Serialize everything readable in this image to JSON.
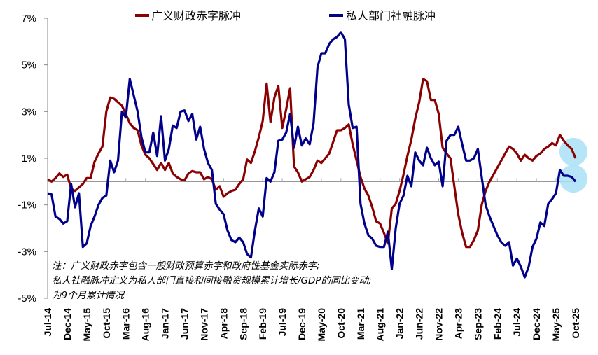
{
  "chart_data": {
    "type": "line",
    "x_start": "Jul-14",
    "frequency": "monthly",
    "x_tick_labels": [
      "Jul-14",
      "Dec-14",
      "May-15",
      "Oct-15",
      "Mar-16",
      "Aug-16",
      "Jan-17",
      "Jun-17",
      "Nov-17",
      "Apr-18",
      "Sep-18",
      "Feb-19",
      "Jul-19",
      "Dec-19",
      "May-20",
      "Oct-20",
      "Mar-21",
      "Aug-21",
      "Jan-22",
      "Jun-22",
      "Nov-22",
      "Apr-23",
      "Sep-23",
      "Feb-24",
      "Jul-24",
      "Dec-24",
      "May-25",
      "Oct-25"
    ],
    "y_tick_labels": [
      "7%",
      "5%",
      "3%",
      "1%",
      "-1%",
      "-3%",
      "-5%"
    ],
    "y_ticks": [
      7,
      5,
      3,
      1,
      -1,
      -3,
      -5
    ],
    "ylim": [
      -5,
      7
    ],
    "grid": false,
    "legend_position": "top",
    "series": [
      {
        "name": "广义财政赤字脉冲",
        "color": "#8b0000",
        "values": [
          0.1,
          0,
          0.15,
          0.35,
          0.2,
          0.3,
          -0.3,
          -0.4,
          -0.25,
          -0.1,
          0.15,
          0.15,
          0.85,
          1.2,
          1.5,
          3.0,
          3.6,
          3.55,
          3.4,
          3.25,
          2.9,
          2.5,
          2.3,
          2.2,
          1.55,
          1.15,
          1.0,
          0.75,
          0.5,
          0.8,
          0.5,
          0.8,
          0.35,
          0.2,
          0.1,
          0.05,
          0.35,
          0.45,
          0.4,
          0.4,
          0.1,
          0.2,
          0.1,
          -0.35,
          -0.2,
          -0.65,
          -0.5,
          -0.4,
          -0.35,
          -0.1,
          0.1,
          0.95,
          0.8,
          1.3,
          1.9,
          2.6,
          4.2,
          2.55,
          3.6,
          4.1,
          2.3,
          3.1,
          4.0,
          0.65,
          0.4,
          0,
          0.1,
          0.2,
          0.5,
          0.9,
          0.8,
          1.0,
          1.2,
          1.7,
          2.2,
          2.2,
          2.3,
          2.45,
          1.6,
          0.9,
          0.2,
          -0.3,
          -0.6,
          -1.1,
          -1.7,
          -1.8,
          -2.2,
          -2.65,
          -1.15,
          -0.95,
          -0.4,
          0.3,
          1.1,
          1.8,
          2.7,
          3.4,
          4.4,
          4.3,
          3.5,
          3.5,
          2.9,
          1.45,
          1.2,
          1.0,
          -0.2,
          -1.4,
          -2.2,
          -2.8,
          -2.8,
          -2.5,
          -2.1,
          -1.0,
          -0.4,
          0,
          0.3,
          0.6,
          0.9,
          1.2,
          1.5,
          1.4,
          1.2,
          0.9,
          1.15,
          1.0,
          0.9,
          1.1,
          1.2,
          1.4,
          1.5,
          1.65,
          1.55,
          2.0,
          1.75,
          1.55,
          1.4,
          1.0
        ]
      },
      {
        "name": "私人部门社融脉冲",
        "color": "#00008b",
        "values": [
          -0.5,
          -0.55,
          -1.5,
          -1.6,
          -1.8,
          -1.7,
          -0.1,
          -1.1,
          -0.5,
          -2.8,
          -2.65,
          -1.9,
          -1.5,
          -1.0,
          -0.7,
          -0.6,
          0.9,
          0.4,
          0.9,
          3.0,
          2.75,
          4.4,
          3.7,
          3.0,
          1.9,
          1.25,
          1.25,
          2.1,
          1.1,
          2.8,
          0.9,
          1.4,
          2.4,
          2.3,
          3.0,
          3.05,
          2.6,
          2.9,
          1.8,
          2.35,
          1.4,
          0.8,
          0.5,
          -0.95,
          -1.2,
          -1.4,
          -2.1,
          -2.5,
          -2.6,
          -2.4,
          -2.6,
          -3.1,
          -3.25,
          -2.1,
          -1.15,
          -1.5,
          0.15,
          0,
          0.4,
          1.75,
          1.8,
          2.1,
          2.9,
          1.45,
          2.35,
          1.55,
          1.85,
          1.6,
          2.5,
          4.9,
          5.5,
          5.5,
          5.9,
          6.1,
          6.2,
          6.4,
          6.1,
          3.3,
          2.3,
          2.35,
          -0.95,
          -1.8,
          -2.3,
          -2.45,
          -2.75,
          -2.8,
          -2.8,
          -2.15,
          -3.75,
          -2.0,
          -0.95,
          -0.6,
          0.25,
          -0.2,
          1.25,
          0.9,
          0.7,
          1.45,
          1.0,
          0.7,
          0.85,
          -0.2,
          1.75,
          2.0,
          2.0,
          2.35,
          1.6,
          0.9,
          0.9,
          1.0,
          1.4,
          0.2,
          -1.0,
          -1.5,
          -1.9,
          -2.3,
          -2.6,
          -2.75,
          -2.6,
          -3.6,
          -3.3,
          -3.65,
          -4.1,
          -3.65,
          -2.8,
          -2.45,
          -1.75,
          -1.9,
          -0.95,
          -0.75,
          -0.5,
          0.5,
          0.25,
          0.25,
          0.2,
          0
        ]
      }
    ],
    "highlight_color": "#a8e0f5",
    "highlight_last_points": 3,
    "note_lines": [
      "注：广义财政赤字包含一般财政预算赤字和政府性基金实际赤字;",
      "私人社融脉冲定义为私人部门直接和间接融资规模累计增长/GDP的同比变动;",
      "为9个月累计情况"
    ]
  }
}
